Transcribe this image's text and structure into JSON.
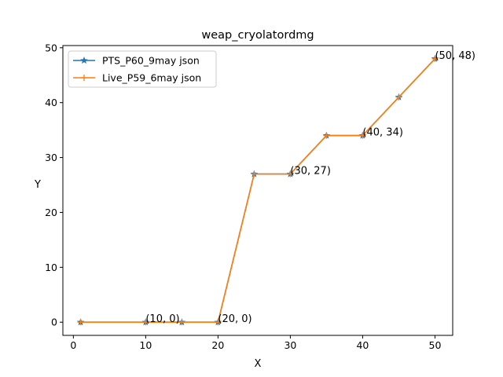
{
  "chart_data": {
    "type": "line",
    "title": "weap_cryolatordmg",
    "xlabel": "X",
    "ylabel": "Y",
    "xlim": [
      -1.45,
      52.45
    ],
    "ylim": [
      -2.4,
      50.4
    ],
    "xticks": [
      0,
      10,
      20,
      30,
      40,
      50
    ],
    "yticks": [
      0,
      10,
      20,
      30,
      40,
      50
    ],
    "grid": false,
    "legend_position": "top-left",
    "series": [
      {
        "name": "PTS_P60_9may json",
        "color": "#1f77b4",
        "marker": "star",
        "x": [
          1,
          10,
          15,
          20,
          25,
          30,
          35,
          40,
          45,
          50
        ],
        "y": [
          0,
          0,
          0,
          0,
          27,
          27,
          34,
          34,
          41,
          48
        ]
      },
      {
        "name": "Live_P59_6may json",
        "color": "#ff7f0e",
        "marker": "plus",
        "x": [
          1,
          10,
          15,
          20,
          25,
          30,
          35,
          40,
          45,
          50
        ],
        "y": [
          0,
          0,
          0,
          0,
          27,
          27,
          34,
          34,
          41,
          48
        ]
      }
    ],
    "annotations": [
      {
        "x": 10,
        "y": 0,
        "text": "(10, 0)"
      },
      {
        "x": 20,
        "y": 0,
        "text": "(20, 0)"
      },
      {
        "x": 30,
        "y": 27,
        "text": "(30, 27)"
      },
      {
        "x": 40,
        "y": 34,
        "text": "(40, 34)"
      },
      {
        "x": 50,
        "y": 48,
        "text": "(50, 48)"
      }
    ]
  }
}
